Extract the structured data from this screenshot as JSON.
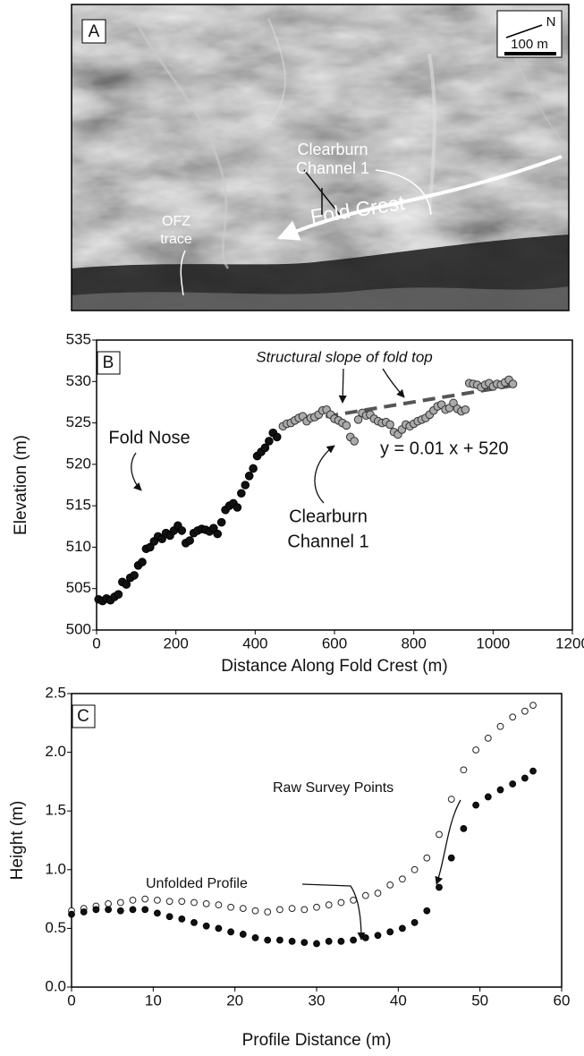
{
  "photo": {
    "panel_label": "A",
    "north": "N",
    "scale_bar": "100 m",
    "annotations": {
      "channel": [
        "Clearburn",
        "Channel 1"
      ],
      "ofz": [
        "OFZ",
        "trace"
      ],
      "fold_crest": "Fold Crest"
    }
  },
  "chart_data": [
    {
      "type": "scatter",
      "panel_label": "B",
      "xlabel": "Distance Along Fold Crest (m)",
      "ylabel": "Elevation (m)",
      "xlim": [
        0,
        1200
      ],
      "ylim": [
        500,
        535
      ],
      "xticks": [
        0,
        200,
        400,
        600,
        800,
        1000,
        1200
      ],
      "yticks": [
        500,
        505,
        510,
        515,
        520,
        525,
        530,
        535
      ],
      "series": [
        {
          "color": "#111111",
          "edgecolor": "#000000",
          "x": [
            5,
            15,
            25,
            35,
            45,
            55,
            65,
            75,
            85,
            95,
            105,
            115,
            125,
            135,
            145,
            155,
            165,
            175,
            185,
            195,
            205,
            215,
            225,
            235,
            245,
            255,
            265,
            275,
            285,
            295,
            305,
            315,
            325,
            335,
            345,
            355,
            365,
            375,
            385,
            395,
            405,
            415,
            425,
            435,
            445,
            455
          ],
          "values": [
            503.7,
            503.5,
            503.8,
            503.6,
            504.0,
            504.3,
            505.8,
            505.5,
            506.3,
            506.6,
            507.8,
            508.2,
            509.8,
            510.0,
            510.7,
            511.3,
            511.0,
            511.7,
            511.4,
            512.0,
            512.6,
            512.0,
            510.5,
            510.8,
            511.7,
            512.0,
            512.2,
            512.1,
            511.9,
            512.3,
            511.6,
            513.0,
            514.5,
            515.0,
            515.3,
            514.8,
            516.5,
            517.5,
            518.6,
            519.5,
            521.0,
            521.5,
            522.0,
            522.8,
            523.8,
            523.3
          ]
        },
        {
          "color": "#aaaaaa",
          "edgecolor": "#333333",
          "x": [
            470,
            480,
            490,
            500,
            510,
            520,
            530,
            540,
            550,
            560,
            570,
            580,
            590,
            600,
            610,
            620,
            630,
            640,
            650,
            660,
            670,
            680,
            690,
            700,
            710,
            720,
            730,
            740,
            750,
            760,
            770,
            780,
            790,
            800,
            810,
            820,
            830,
            840,
            850,
            860,
            870,
            880,
            890,
            900,
            910,
            920,
            930,
            940,
            950,
            960,
            970,
            980,
            990,
            1000,
            1010,
            1020,
            1030,
            1040,
            1050
          ],
          "values": [
            524.6,
            524.9,
            525.0,
            525.3,
            525.6,
            525.8,
            525.2,
            525.6,
            525.7,
            526.0,
            526.5,
            526.6,
            526.0,
            525.5,
            525.3,
            525.0,
            524.7,
            523.3,
            522.8,
            525.4,
            526.2,
            525.9,
            526.0,
            525.5,
            525.2,
            525.0,
            525.1,
            524.8,
            523.9,
            523.6,
            524.2,
            524.8,
            524.6,
            524.9,
            525.2,
            525.4,
            525.6,
            526.0,
            526.5,
            527.0,
            527.2,
            526.6,
            526.8,
            527.4,
            526.7,
            526.4,
            526.6,
            529.8,
            529.7,
            529.6,
            529.3,
            529.6,
            529.8,
            529.4,
            529.7,
            529.6,
            529.9,
            530.2,
            529.7
          ]
        }
      ],
      "trend_line": {
        "x": [
          480,
          1050
        ],
        "values": [
          525,
          529.5
        ],
        "color": "#555555"
      },
      "annotations": {
        "slope": "Structural slope of fold top",
        "fold_nose": "Fold Nose",
        "equation": "y = 0.01 x + 520",
        "channel": [
          "Clearburn",
          "Channel 1"
        ]
      }
    },
    {
      "type": "scatter",
      "panel_label": "C",
      "xlabel": "Profile Distance (m)",
      "ylabel": "Height (m)",
      "xlim": [
        0,
        60
      ],
      "ylim": [
        0,
        2.5
      ],
      "xticks": [
        0,
        10,
        20,
        30,
        40,
        50,
        60
      ],
      "yticks": [
        {
          "value": 0,
          "label": "0.0"
        },
        0.5,
        {
          "value": 1,
          "label": "1.0"
        },
        1.5,
        {
          "value": 2,
          "label": "2.0"
        },
        2.5
      ],
      "series": [
        {
          "color": "#ffffff",
          "edgecolor": "#222222",
          "x": [
            0,
            1.5,
            3,
            4.5,
            6,
            7.5,
            9,
            10.5,
            12,
            13.5,
            15,
            16.5,
            18,
            19.5,
            21,
            22.5,
            24,
            25.5,
            27,
            28.5,
            30,
            31.5,
            33,
            34.5,
            36,
            37.5,
            39,
            40.5,
            42,
            43.5,
            45,
            46.5,
            48,
            49.5,
            51,
            52.5,
            54,
            55.5,
            56.5
          ],
          "values": [
            0.65,
            0.67,
            0.69,
            0.71,
            0.72,
            0.74,
            0.75,
            0.74,
            0.73,
            0.73,
            0.72,
            0.71,
            0.7,
            0.68,
            0.67,
            0.65,
            0.64,
            0.66,
            0.67,
            0.66,
            0.68,
            0.7,
            0.72,
            0.74,
            0.78,
            0.8,
            0.87,
            0.92,
            1.0,
            1.1,
            1.3,
            1.6,
            1.85,
            2.02,
            2.12,
            2.22,
            2.3,
            2.35,
            2.4
          ]
        },
        {
          "color": "#111111",
          "edgecolor": "#000000",
          "x": [
            0,
            1.5,
            3,
            4.5,
            6,
            7.5,
            9,
            10.5,
            12,
            13.5,
            15,
            16.5,
            18,
            19.5,
            21,
            22.5,
            24,
            25.5,
            27,
            28.5,
            30,
            31.5,
            33,
            34.5,
            36,
            37.5,
            39,
            40.5,
            42,
            43.5,
            45,
            46.5,
            48,
            49.5,
            51,
            52.5,
            54,
            55.5,
            56.5
          ],
          "values": [
            0.62,
            0.64,
            0.66,
            0.66,
            0.65,
            0.66,
            0.66,
            0.63,
            0.6,
            0.58,
            0.55,
            0.52,
            0.5,
            0.47,
            0.45,
            0.42,
            0.4,
            0.4,
            0.39,
            0.38,
            0.37,
            0.39,
            0.39,
            0.4,
            0.42,
            0.44,
            0.47,
            0.5,
            0.55,
            0.65,
            0.85,
            1.1,
            1.35,
            1.55,
            1.62,
            1.68,
            1.73,
            1.78,
            1.84
          ]
        }
      ],
      "annotations": {
        "raw": "Raw Survey Points",
        "unfolded": "Unfolded Profile"
      }
    }
  ]
}
